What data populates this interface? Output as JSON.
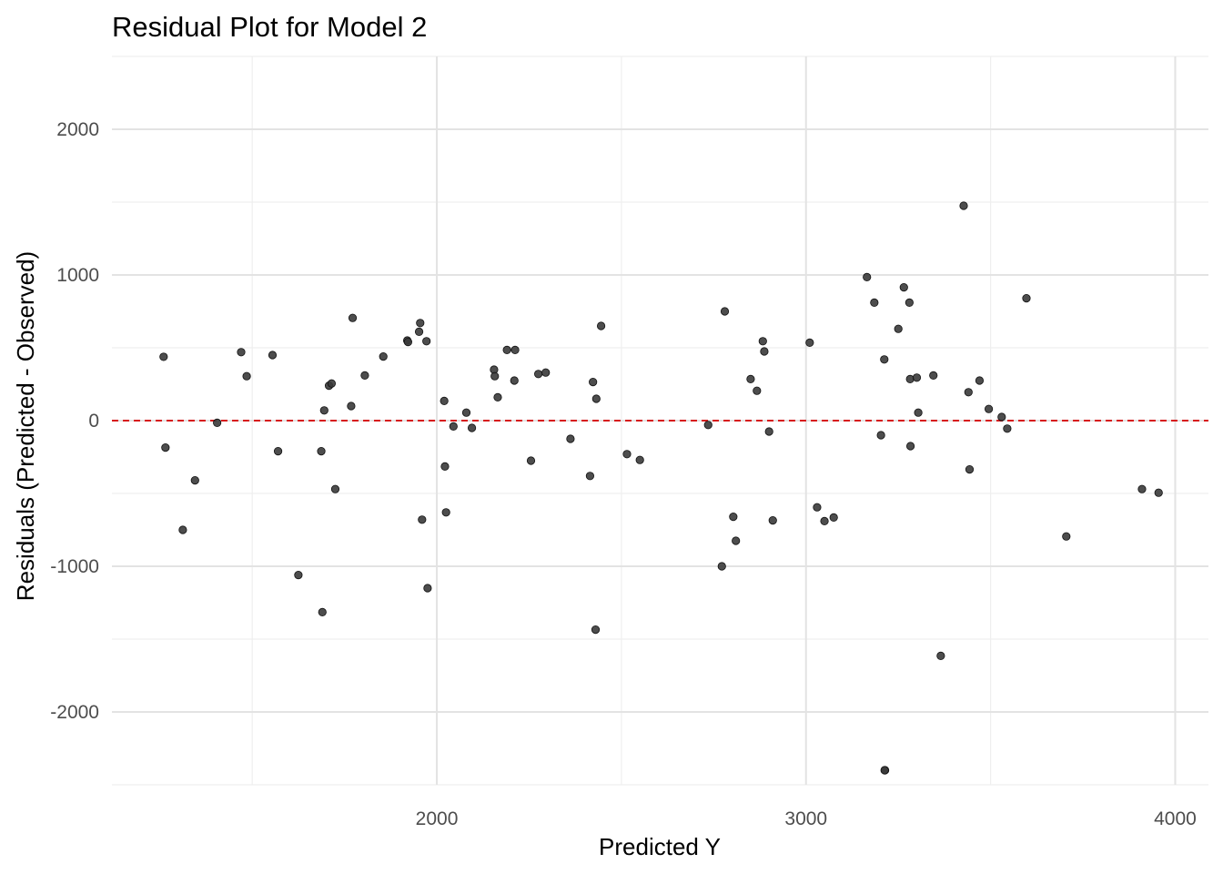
{
  "chart_data": {
    "type": "scatter",
    "title": "Residual Plot for Model 2",
    "xlabel": "Predicted Y",
    "ylabel": "Residuals (Predicted - Observed)",
    "xlim": [
      1120,
      4090
    ],
    "ylim": [
      -2500,
      2500
    ],
    "x_ticks": [
      2000,
      3000,
      4000
    ],
    "x_tick_labels": [
      "2000",
      "3000",
      "4000"
    ],
    "x_minor_ticks": [
      1500,
      2500,
      3500
    ],
    "y_ticks": [
      -2000,
      -1000,
      0,
      1000,
      2000
    ],
    "y_tick_labels": [
      "-2000",
      "-1000",
      "0",
      "1000",
      "2000"
    ],
    "y_minor_ticks": [
      -2500,
      -1500,
      -500,
      500,
      1500,
      2500
    ],
    "grid": true,
    "legend": "none",
    "reference_line": {
      "y": 0,
      "style": "dashed",
      "color": "#d7191c"
    },
    "point_color": "#3a3a3a",
    "x": [
      1260,
      1265,
      1312,
      1345,
      1405,
      1470,
      1485,
      1555,
      1570,
      1625,
      1687,
      1690,
      1695,
      1708,
      1715,
      1725,
      1768,
      1772,
      1805,
      1855,
      1920,
      1922,
      1952,
      1955,
      1960,
      1972,
      1975,
      2020,
      2022,
      2025,
      2045,
      2080,
      2095,
      2155,
      2157,
      2165,
      2190,
      2210,
      2212,
      2255,
      2275,
      2295,
      2362,
      2415,
      2423,
      2430,
      2432,
      2445,
      2515,
      2550,
      2735,
      2772,
      2780,
      2803,
      2810,
      2850,
      2867,
      2883,
      2887,
      2900,
      2910,
      3010,
      3030,
      3050,
      3075,
      3165,
      3185,
      3203,
      3212,
      3214,
      3250,
      3265,
      3280,
      3282,
      3300,
      3304,
      3283,
      3345,
      3365,
      3427,
      3440,
      3443,
      3470,
      3495,
      3530,
      3545,
      3597,
      3705,
      3910,
      3955,
      3213
    ],
    "y": [
      438,
      -185,
      -750,
      -410,
      -15,
      470,
      305,
      450,
      -210,
      -1060,
      -210,
      -1315,
      70,
      240,
      255,
      -470,
      100,
      705,
      310,
      440,
      550,
      540,
      610,
      670,
      -680,
      545,
      -1150,
      135,
      -315,
      -630,
      -40,
      55,
      -50,
      350,
      305,
      160,
      485,
      275,
      485,
      -275,
      320,
      330,
      -125,
      -380,
      265,
      -1435,
      150,
      650,
      -230,
      -270,
      -30,
      -1000,
      750,
      -660,
      -825,
      285,
      205,
      545,
      475,
      -75,
      -685,
      535,
      -595,
      -690,
      -665,
      985,
      810,
      -100,
      420,
      -2400,
      630,
      915,
      810,
      285,
      295,
      55,
      -175,
      310,
      -1615,
      1475,
      195,
      -335,
      275,
      80,
      25,
      -55,
      840,
      -795,
      -470,
      -495,
      -2400
    ]
  }
}
